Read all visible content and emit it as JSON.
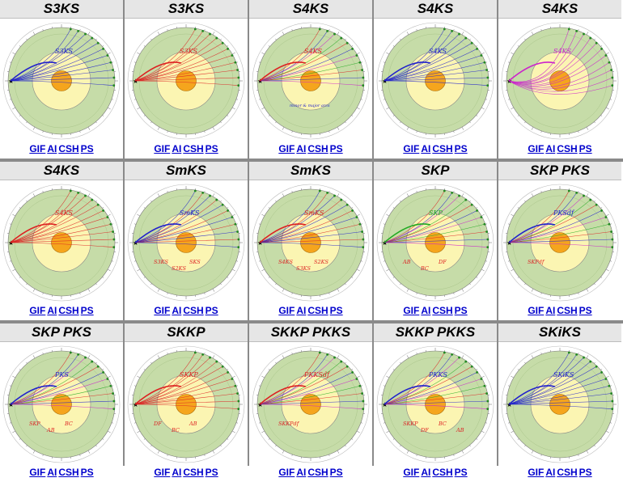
{
  "link_labels": [
    "GIF",
    "AI",
    "CSH",
    "PS"
  ],
  "colors": {
    "mantle": "#c6dca8",
    "outer_core": "#fbf5b2",
    "inner_core": "#f5a51d",
    "ray_blue": "#2222cc",
    "ray_red": "#dd2222",
    "ray_magenta": "#cc22cc",
    "ray_green": "#22aa22"
  },
  "panels": [
    {
      "title": "S3KS",
      "label": "S3KS",
      "color": "ray_blue",
      "fan": "blue"
    },
    {
      "title": "S3KS",
      "label": "S3KS",
      "color": "ray_red",
      "fan": "red"
    },
    {
      "title": "S4KS",
      "label": "S4KS",
      "note": "minor & major arcs",
      "color": "ray_red",
      "fan": "mixed"
    },
    {
      "title": "S4KS",
      "label": "S4KS",
      "color": "ray_blue",
      "fan": "blue"
    },
    {
      "title": "S4KS",
      "label": "S4KS",
      "color": "ray_magenta",
      "fan": "magenta"
    },
    {
      "title": "S4KS",
      "label": "S4KS",
      "color": "ray_red",
      "fan": "red"
    },
    {
      "title": "SmKS",
      "label": "SmKS",
      "sublabels": [
        "S3KS",
        "S2KS",
        "SKS"
      ],
      "color": "ray_blue",
      "fan": "thin"
    },
    {
      "title": "SmKS",
      "label": "SmKS",
      "sublabels": [
        "S4KS",
        "S3KS",
        "S2KS"
      ],
      "color": "ray_red",
      "fan": "thin"
    },
    {
      "title": "SKP",
      "label": "SKP",
      "sublabels": [
        "AB",
        "BC",
        "DF"
      ],
      "color": "ray_green",
      "fan": "mixed"
    },
    {
      "title": "SKP PKS",
      "label": "PKSdf",
      "sublabels": [
        "SKPdf"
      ],
      "color": "ray_blue",
      "fan": "mixed"
    },
    {
      "title": "SKP PKS",
      "label": "PKS",
      "sublabels": [
        "SKP",
        "AB",
        "BC"
      ],
      "color": "ray_blue",
      "fan": "mixed"
    },
    {
      "title": "SKKP",
      "label": "SKKP",
      "sublabels": [
        "DF",
        "BC",
        "AB"
      ],
      "color": "ray_red",
      "fan": "red"
    },
    {
      "title": "SKKP PKKS",
      "label": "PKKSdf",
      "sublabels": [
        "SKKPdf"
      ],
      "color": "ray_red",
      "fan": "mixed"
    },
    {
      "title": "SKKP PKKS",
      "label": "PKKS",
      "sublabels": [
        "SKKP",
        "DF",
        "BC",
        "AB"
      ],
      "color": "ray_blue",
      "fan": "mixed"
    },
    {
      "title": "SKiKS",
      "label": "SKiKS",
      "color": "ray_blue",
      "fan": "blue"
    }
  ]
}
